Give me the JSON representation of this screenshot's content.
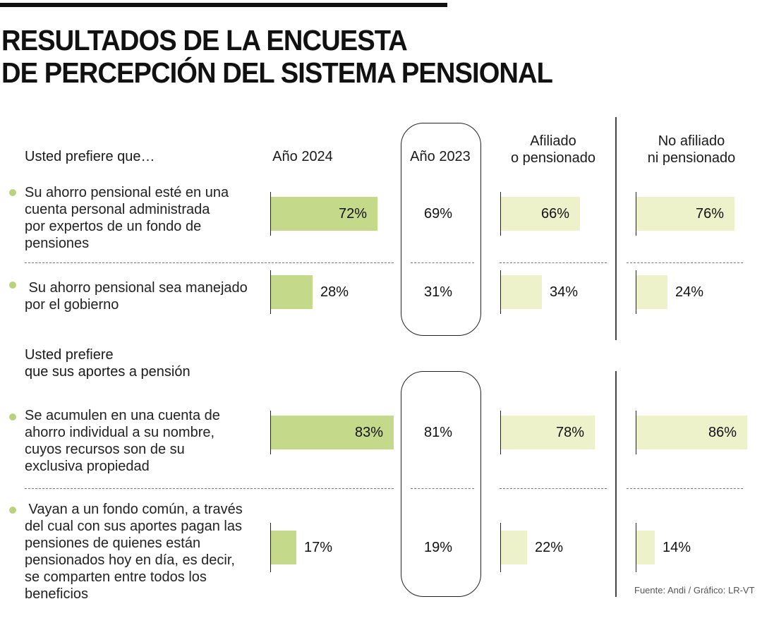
{
  "header": {
    "title_line1": "RESULTADOS DE LA ENCUESTA",
    "title_line2": "DE PERCEPCIÓN DEL SISTEMA PENSIONAL"
  },
  "columns": {
    "col1": "Año 2024",
    "col2": "Año 2023",
    "col3_line1": "Afiliado",
    "col3_line2": "o pensionado",
    "col4_line1": "No afiliado",
    "col4_line2": "ni pensionado"
  },
  "section1": {
    "question": "Usted prefiere que…",
    "item1_lines": [
      "Su ahorro pensional esté en una",
      "cuenta personal administrada",
      "por expertos de un fondo de",
      "pensiones"
    ],
    "item2_lines": [
      " Su ahorro pensional sea manejado",
      "por el gobierno"
    ],
    "item1_values": {
      "y2024": "72%",
      "y2023": "69%",
      "afiliado": "66%",
      "no_afiliado": "76%"
    },
    "item2_values": {
      "y2024": "28%",
      "y2023": "31%",
      "afiliado": "34%",
      "no_afiliado": "24%"
    }
  },
  "section2": {
    "question_line1": "Usted prefiere",
    "question_line2": "que sus aportes a pensión",
    "item1_lines": [
      "Se acumulen en una cuenta de",
      "ahorro individual a su nombre,",
      "cuyos recursos son de su",
      "exclusiva propiedad"
    ],
    "item2_lines": [
      " Vayan a un fondo común, a través",
      "del cual con sus aportes pagan las",
      "pensiones de quienes están",
      "pensionados hoy en día, es decir,",
      "se comparten entre todos los",
      "beneficios"
    ],
    "item1_values": {
      "y2024": "83%",
      "y2023": "81%",
      "afiliado": "78%",
      "no_afiliado": "86%"
    },
    "item2_values": {
      "y2024": "17%",
      "y2023": "19%",
      "afiliado": "22%",
      "no_afiliado": "14%"
    }
  },
  "footer": {
    "source": "Fuente: Andi / Gráfico: LR-VT"
  },
  "colors": {
    "bar_2024": "#c5d98b",
    "bar_segments": "#edf2cb",
    "bullet": "#b9d27c"
  },
  "chart_data": {
    "type": "bar",
    "title": "RESULTADOS DE LA ENCUESTA DE PERCEPCIÓN DEL SISTEMA PENSIONAL",
    "categories": [
      "Su ahorro pensional esté en una cuenta personal administrada por expertos de un fondo de pensiones",
      "Su ahorro pensional sea manejado por el gobierno",
      "Se acumulen en una cuenta de ahorro individual a su nombre, cuyos recursos son de su exclusiva propiedad",
      "Vayan a un fondo común, a través del cual con sus aportes pagan las pensiones de quienes están pensionados hoy en día, es decir, se comparten entre todos los beneficios"
    ],
    "groups": [
      "Usted prefiere que…",
      "Usted prefiere que sus aportes a pensión"
    ],
    "series": [
      {
        "name": "Año 2024",
        "values": [
          72,
          28,
          83,
          17
        ],
        "bars": true
      },
      {
        "name": "Año 2023",
        "values": [
          69,
          31,
          81,
          19
        ],
        "bars": false
      },
      {
        "name": "Afiliado o pensionado",
        "values": [
          66,
          34,
          78,
          22
        ],
        "bars": true
      },
      {
        "name": "No afiliado ni pensionado",
        "values": [
          76,
          24,
          86,
          14
        ],
        "bars": true
      }
    ],
    "unit": "%",
    "xlim": [
      0,
      100
    ],
    "source": "Fuente: Andi / Gráfico: LR-VT"
  }
}
